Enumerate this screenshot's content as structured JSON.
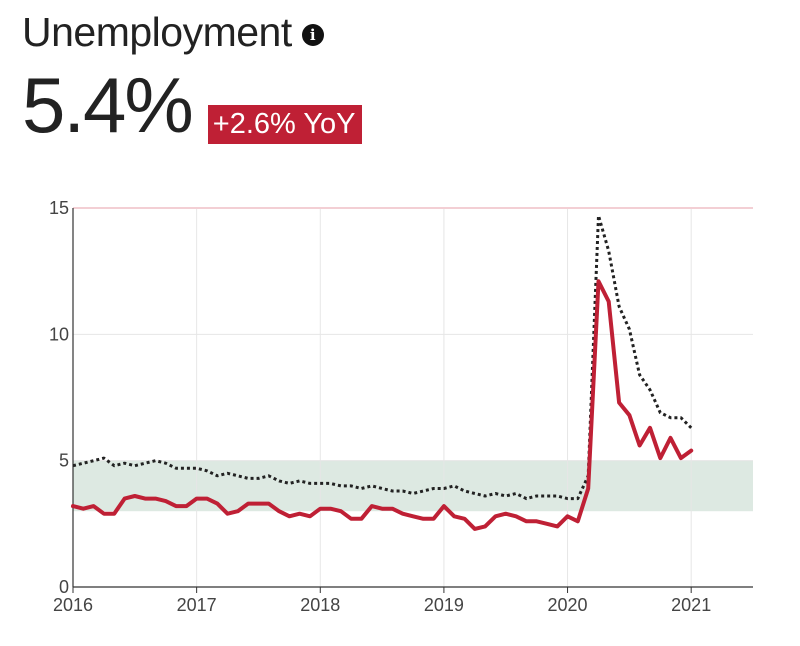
{
  "header": {
    "title": "Unemployment",
    "info_icon": "info-icon",
    "value": "5.4%",
    "change": "+2.6% YoY"
  },
  "colors": {
    "primary_line": "#bf2035",
    "secondary_line": "#222222",
    "band": "#dde9e2",
    "grid": "#e6e6e6",
    "badge": "#bf2035"
  },
  "chart_data": {
    "type": "line",
    "xlim": [
      2016,
      2021.5
    ],
    "ylim": [
      0,
      15
    ],
    "xticks": [
      "2016",
      "2017",
      "2018",
      "2019",
      "2020",
      "2021"
    ],
    "yticks": [
      "0",
      "5",
      "10",
      "15"
    ],
    "band": [
      3,
      5
    ],
    "grid": true,
    "series": [
      {
        "style": "solid",
        "x": [
          2016.0,
          2016.083,
          2016.167,
          2016.25,
          2016.333,
          2016.417,
          2016.5,
          2016.583,
          2016.667,
          2016.75,
          2016.833,
          2016.917,
          2017.0,
          2017.083,
          2017.167,
          2017.25,
          2017.333,
          2017.417,
          2017.5,
          2017.583,
          2017.667,
          2017.75,
          2017.833,
          2017.917,
          2018.0,
          2018.083,
          2018.167,
          2018.25,
          2018.333,
          2018.417,
          2018.5,
          2018.583,
          2018.667,
          2018.75,
          2018.833,
          2018.917,
          2019.0,
          2019.083,
          2019.167,
          2019.25,
          2019.333,
          2019.417,
          2019.5,
          2019.583,
          2019.667,
          2019.75,
          2019.833,
          2019.917,
          2020.0,
          2020.083,
          2020.167,
          2020.25,
          2020.333,
          2020.417,
          2020.5,
          2020.583,
          2020.667,
          2020.75,
          2020.833,
          2020.917,
          2021.0
        ],
        "y": [
          3.2,
          3.1,
          3.2,
          2.9,
          2.9,
          3.5,
          3.6,
          3.5,
          3.5,
          3.4,
          3.2,
          3.2,
          3.5,
          3.5,
          3.3,
          2.9,
          3.0,
          3.3,
          3.3,
          3.3,
          3.0,
          2.8,
          2.9,
          2.8,
          3.1,
          3.1,
          3.0,
          2.7,
          2.7,
          3.2,
          3.1,
          3.1,
          2.9,
          2.8,
          2.7,
          2.7,
          3.2,
          2.8,
          2.7,
          2.3,
          2.4,
          2.8,
          2.9,
          2.8,
          2.6,
          2.6,
          2.5,
          2.4,
          2.8,
          2.6,
          3.9,
          12.1,
          11.3,
          7.3,
          6.8,
          5.6,
          6.3,
          5.1,
          5.9,
          5.1,
          5.4
        ]
      },
      {
        "style": "dotted",
        "x": [
          2016.0,
          2016.083,
          2016.167,
          2016.25,
          2016.333,
          2016.417,
          2016.5,
          2016.583,
          2016.667,
          2016.75,
          2016.833,
          2016.917,
          2017.0,
          2017.083,
          2017.167,
          2017.25,
          2017.333,
          2017.417,
          2017.5,
          2017.583,
          2017.667,
          2017.75,
          2017.833,
          2017.917,
          2018.0,
          2018.083,
          2018.167,
          2018.25,
          2018.333,
          2018.417,
          2018.5,
          2018.583,
          2018.667,
          2018.75,
          2018.833,
          2018.917,
          2019.0,
          2019.083,
          2019.167,
          2019.25,
          2019.333,
          2019.417,
          2019.5,
          2019.583,
          2019.667,
          2019.75,
          2019.833,
          2019.917,
          2020.0,
          2020.083,
          2020.167,
          2020.25,
          2020.333,
          2020.417,
          2020.5,
          2020.583,
          2020.667,
          2020.75,
          2020.833,
          2020.917,
          2021.0
        ],
        "y": [
          4.8,
          4.9,
          5.0,
          5.1,
          4.8,
          4.9,
          4.8,
          4.9,
          5.0,
          4.9,
          4.7,
          4.7,
          4.7,
          4.6,
          4.4,
          4.5,
          4.4,
          4.3,
          4.3,
          4.4,
          4.2,
          4.1,
          4.2,
          4.1,
          4.1,
          4.1,
          4.0,
          4.0,
          3.9,
          4.0,
          3.9,
          3.8,
          3.8,
          3.7,
          3.8,
          3.9,
          3.9,
          4.0,
          3.8,
          3.7,
          3.6,
          3.7,
          3.6,
          3.7,
          3.5,
          3.6,
          3.6,
          3.6,
          3.5,
          3.5,
          4.4,
          14.7,
          13.3,
          11.1,
          10.2,
          8.4,
          7.8,
          6.9,
          6.7,
          6.7,
          6.3
        ]
      }
    ]
  }
}
